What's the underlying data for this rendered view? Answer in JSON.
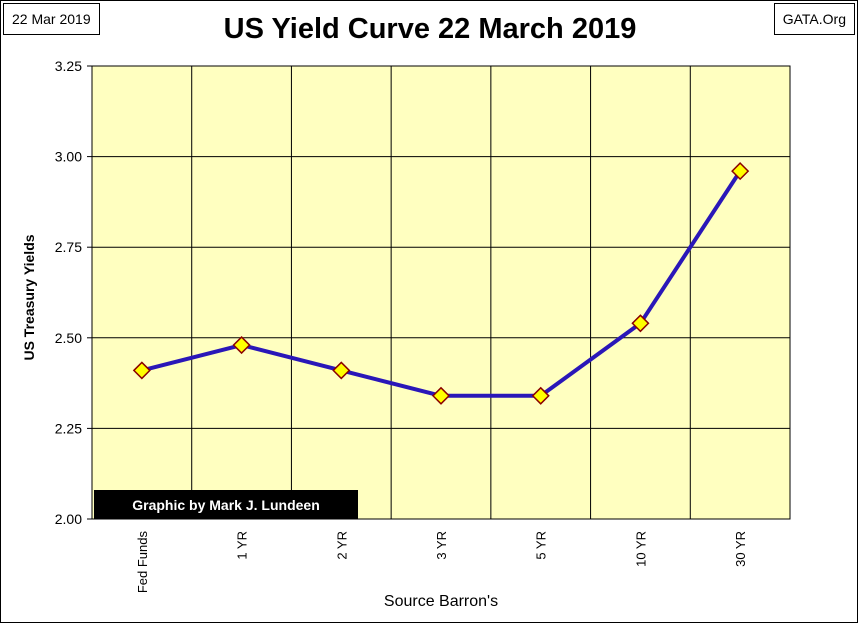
{
  "date_label": "22 Mar 2019",
  "site_label": "GATA.Org",
  "chart_data": {
    "type": "line",
    "title": "US Yield Curve 22 March 2019",
    "xlabel": "Source Barron's",
    "ylabel": "US Treasury Yields",
    "credit": "Graphic by Mark J. Lundeen",
    "categories": [
      "Fed Funds",
      "1 YR",
      "2 YR",
      "3 YR",
      "5 YR",
      "10 YR",
      "30 YR"
    ],
    "series": [
      {
        "values": [
          2.41,
          2.48,
          2.41,
          2.34,
          2.34,
          2.54,
          2.96
        ]
      }
    ],
    "ylim": [
      2.0,
      3.25
    ],
    "yticks": [
      "2.00",
      "2.25",
      "2.50",
      "2.75",
      "3.00",
      "3.25"
    ],
    "grid": true,
    "colors": {
      "plot_background": "#ffffc0",
      "line": "#2a17b8",
      "marker_fill": "#ffff00",
      "marker_stroke": "#8b0000",
      "credit_background": "#000000",
      "credit_text": "#ffffff"
    }
  }
}
